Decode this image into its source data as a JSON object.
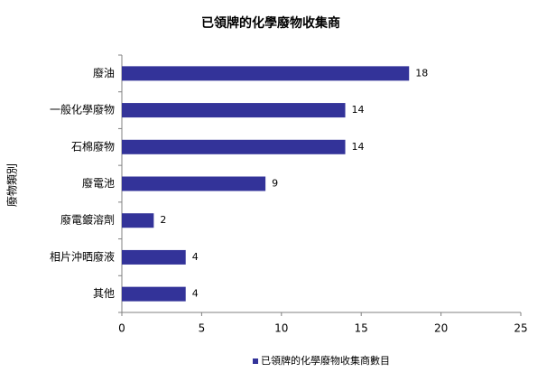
{
  "chart_data": {
    "type": "hbar",
    "title": "已領牌的化學廢物收集商",
    "y_label": "廢物類別",
    "categories": [
      "廢油",
      "一般化學廢物",
      "石棉廢物",
      "廢電池",
      "廢電鍍溶劑",
      "相片沖晒廢液",
      "其他"
    ],
    "series": [
      {
        "name": "已領牌的化學廢物收集商數目",
        "color": "#333399",
        "values": [
          18,
          14,
          14,
          9,
          2,
          4,
          4
        ]
      }
    ],
    "xlim": [
      0,
      25
    ],
    "xticks": [
      0,
      5,
      10,
      15,
      20,
      25
    ],
    "grid": false,
    "legend": "bottom"
  }
}
